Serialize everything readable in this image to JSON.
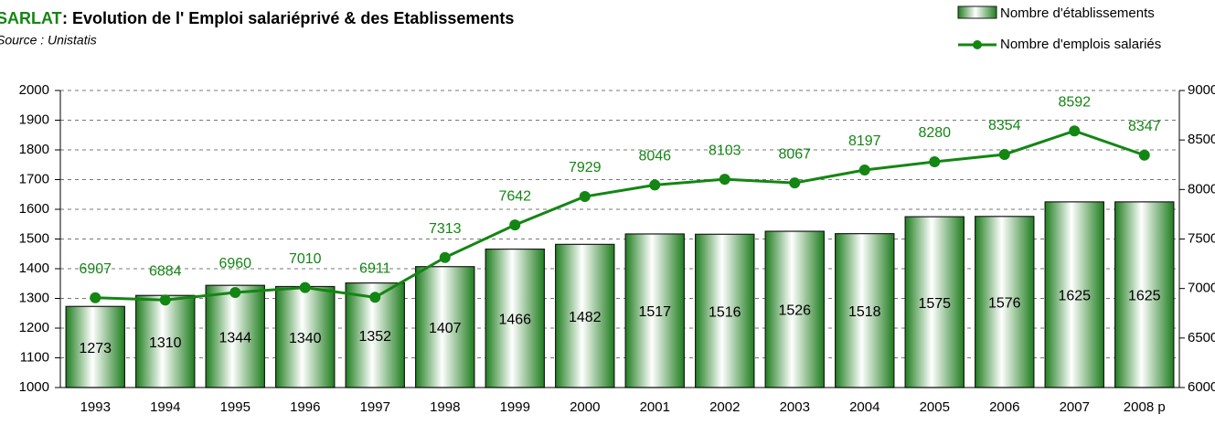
{
  "chart_data": {
    "type": "bar_line",
    "title_place": "SARLAT",
    "title": ": Evolution de l' Emploi salariéprivé  & des Etablissements",
    "subtitle": "Source : Unistatis",
    "categories": [
      "1993",
      "1994",
      "1995",
      "1996",
      "1997",
      "1998",
      "1999",
      "2000",
      "2001",
      "2002",
      "2003",
      "2004",
      "2005",
      "2006",
      "2007",
      "2008 p"
    ],
    "series": [
      {
        "name": "Nombre d'établissements",
        "type": "bar",
        "color": "#1e7a1e",
        "values": [
          1273,
          1310,
          1344,
          1340,
          1352,
          1407,
          1466,
          1482,
          1517,
          1516,
          1526,
          1518,
          1575,
          1576,
          1625,
          1625
        ]
      },
      {
        "name": "Nombre d'emplois salariés",
        "type": "line",
        "axis": "y2",
        "color": "#138613",
        "values": [
          6907,
          6884,
          6960,
          7010,
          6911,
          7313,
          7642,
          7929,
          8046,
          8103,
          8067,
          8197,
          8280,
          8354,
          8592,
          8347
        ]
      }
    ],
    "ylim": [
      1000,
      2000
    ],
    "yticks": [
      1000,
      1100,
      1200,
      1300,
      1400,
      1500,
      1600,
      1700,
      1800,
      1900,
      2000
    ],
    "y2lim": [
      6000,
      9000
    ],
    "y2ticks": [
      6000,
      6500,
      7000,
      7500,
      8000,
      8500,
      9000
    ],
    "grid": true,
    "legend": "top-right"
  }
}
